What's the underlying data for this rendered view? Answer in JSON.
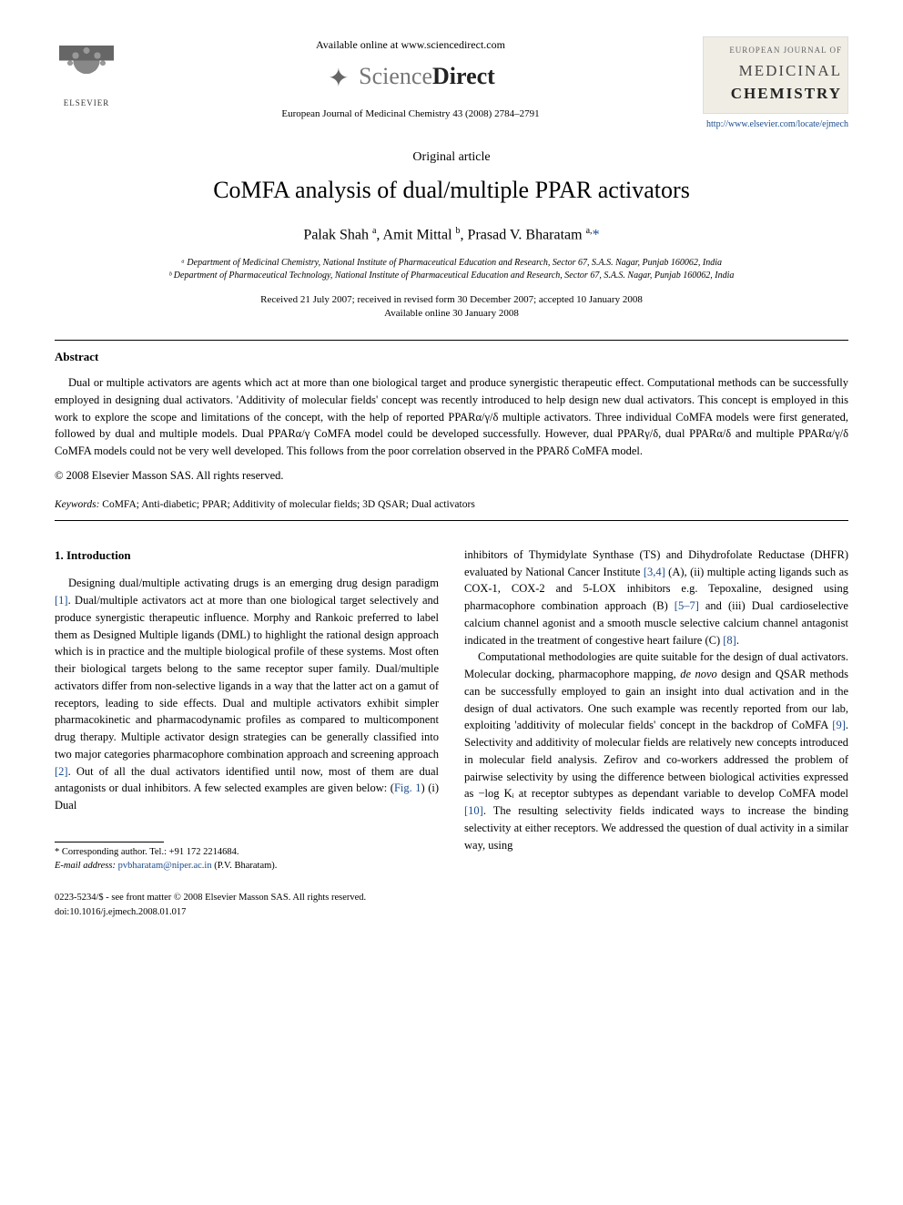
{
  "header": {
    "elsevier": "ELSEVIER",
    "available": "Available online at www.sciencedirect.com",
    "sd_science": "Science",
    "sd_direct": "Direct",
    "citation": "European Journal of Medicinal Chemistry 43 (2008) 2784–2791",
    "journal_top": "EUROPEAN JOURNAL OF",
    "journal_mid": "MEDICINAL",
    "journal_bot": "CHEMISTRY",
    "journal_url": "http://www.elsevier.com/locate/ejmech"
  },
  "article": {
    "type": "Original article",
    "title": "CoMFA analysis of dual/multiple PPAR activators",
    "authors_html": "Palak Shah <sup>a</sup>, Amit Mittal <sup>b</sup>, Prasad V. Bharatam <sup>a,</sup>",
    "affil_a": "ᵃ Department of Medicinal Chemistry, National Institute of Pharmaceutical Education and Research, Sector 67, S.A.S. Nagar, Punjab 160062, India",
    "affil_b": "ᵇ Department of Pharmaceutical Technology, National Institute of Pharmaceutical Education and Research, Sector 67, S.A.S. Nagar, Punjab 160062, India",
    "received": "Received 21 July 2007; received in revised form 30 December 2007; accepted 10 January 2008",
    "available_online": "Available online 30 January 2008"
  },
  "abstract": {
    "heading": "Abstract",
    "body": "Dual or multiple activators are agents which act at more than one biological target and produce synergistic therapeutic effect. Computational methods can be successfully employed in designing dual activators. 'Additivity of molecular fields' concept was recently introduced to help design new dual activators. This concept is employed in this work to explore the scope and limitations of the concept, with the help of reported PPARα/γ/δ multiple activators. Three individual CoMFA models were first generated, followed by dual and multiple models. Dual PPARα/γ CoMFA model could be developed successfully. However, dual PPARγ/δ, dual PPARα/δ and multiple PPARα/γ/δ CoMFA models could not be very well developed. This follows from the poor correlation observed in the PPARδ CoMFA model.",
    "copyright": "© 2008 Elsevier Masson SAS. All rights reserved."
  },
  "keywords": {
    "label": "Keywords:",
    "text": " CoMFA; Anti-diabetic; PPAR; Additivity of molecular fields; 3D QSAR; Dual activators"
  },
  "section1": {
    "heading": "1. Introduction",
    "col1_p1a": "Designing dual/multiple activating drugs is an emerging drug design paradigm ",
    "ref1": "[1]",
    "col1_p1b": ". Dual/multiple activators act at more than one biological target selectively and produce synergistic therapeutic influence. Morphy and Rankoic preferred to label them as Designed Multiple ligands (DML) to highlight the rational design approach which is in practice and the multiple biological profile of these systems. Most often their biological targets belong to the same receptor super family. Dual/multiple activators differ from non-selective ligands in a way that the latter act on a gamut of receptors, leading to side effects. Dual and multiple activators exhibit simpler pharmacokinetic and pharmacodynamic profiles as compared to multicomponent drug therapy. Multiple activator design strategies can be generally classified into two major categories pharmacophore combination approach and screening approach ",
    "ref2": "[2]",
    "col1_p1c": ". Out of all the dual activators identified until now, most of them are dual antagonists or dual inhibitors. A few selected examples are given below: (",
    "fig1": "Fig. 1",
    "col1_p1d": ") (i) Dual",
    "col2_p1a": "inhibitors of Thymidylate Synthase (TS) and Dihydrofolate Reductase (DHFR) evaluated by National Cancer Institute ",
    "ref34": "[3,4]",
    "col2_p1b": " (A), (ii) multiple acting ligands such as COX-1, COX-2 and 5-LOX inhibitors e.g. Tepoxaline, designed using pharmacophore combination approach (B) ",
    "ref57": "[5–7]",
    "col2_p1c": " and (iii) Dual cardioselective calcium channel agonist and a smooth muscle selective calcium channel antagonist indicated in the treatment of congestive heart failure (C) ",
    "ref8": "[8]",
    "col2_p1d": ".",
    "col2_p2a": "Computational methodologies are quite suitable for the design of dual activators. Molecular docking, pharmacophore mapping, ",
    "denovo": "de novo",
    "col2_p2b": " design and QSAR methods can be successfully employed to gain an insight into dual activation and in the design of dual activators. One such example was recently reported from our lab, exploiting 'additivity of molecular fields' concept in the backdrop of CoMFA ",
    "ref9": "[9]",
    "col2_p2c": ". Selectivity and additivity of molecular fields are relatively new concepts introduced in molecular field analysis. Zefirov and co-workers addressed the problem of pairwise selectivity by using the difference between biological activities expressed as −log Kᵢ at receptor subtypes as dependant variable to develop CoMFA model ",
    "ref10": "[10]",
    "col2_p2d": ". The resulting selectivity fields indicated ways to increase the binding selectivity at either receptors. We addressed the question of dual activity in a similar way, using"
  },
  "footnote": {
    "corr": "* Corresponding author. Tel.: +91 172 2214684.",
    "email_label": "E-mail address: ",
    "email": "pvbharatam@niper.ac.in",
    "email_suffix": " (P.V. Bharatam)."
  },
  "footer": {
    "line1": "0223-5234/$ - see front matter © 2008 Elsevier Masson SAS. All rights reserved.",
    "line2": "doi:10.1016/j.ejmech.2008.01.017"
  },
  "colors": {
    "link": "#1a4b8e",
    "text": "#000000",
    "bg": "#ffffff"
  }
}
